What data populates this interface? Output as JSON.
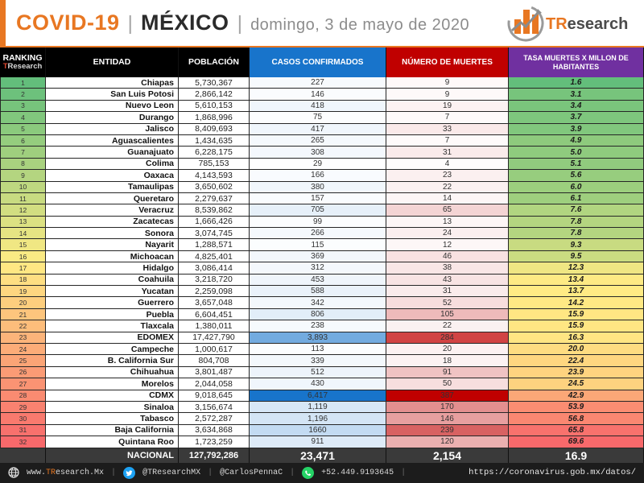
{
  "header": {
    "brand": "COVID-19",
    "separator": "|",
    "country": "MÉXICO",
    "date": "domingo, 3 de mayo de 2020",
    "logo_t": "TR",
    "logo_rest": "esearch"
  },
  "columns": {
    "ranking_line1": "RANKING",
    "ranking_t": "T",
    "ranking_rest": "Research",
    "entidad": "ENTIDAD",
    "poblacion": "POBLACIÓN",
    "casos": "CASOS CONFIRMADOS",
    "muertes": "NÚMERO DE MUERTES",
    "tasa": "TASA MUERTES X MILLON DE HABITANTES"
  },
  "colors": {
    "accent_orange": "#E87722",
    "scale_green": "#63BE7B",
    "scale_yellow": "#FFEB84",
    "scale_red": "#F8696B",
    "casos_header_blue": "#1874CB",
    "casos_max_color": "#1874CB",
    "muertes_header_red": "#C00000",
    "muertes_max_color": "#C00000",
    "tasa_header_purple": "#7030A0"
  },
  "chart_data": {
    "type": "table",
    "title": "COVID-19 | MÉXICO | domingo, 3 de mayo de 2020",
    "columns": [
      "RANKING TResearch",
      "ENTIDAD",
      "POBLACIÓN",
      "CASOS CONFIRMADOS",
      "NÚMERO DE MUERTES",
      "TASA MUERTES X MILLON DE HABITANTES"
    ],
    "scales": {
      "ranking": {
        "min": 1,
        "max": 32,
        "low_color": "#63BE7B",
        "mid_color": "#FFEB84",
        "high_color": "#F8696B"
      },
      "casos": {
        "min": 0,
        "max": 6417,
        "low_color": "#FFFFFF",
        "high_color": "#1874CB"
      },
      "muertes": {
        "min": 0,
        "max": 387,
        "low_color": "#FFFFFF",
        "high_color": "#C00000"
      },
      "tasa": {
        "min": 1.6,
        "mid": 13.55,
        "max": 69.6,
        "low_color": "#63BE7B",
        "mid_color": "#FFEB84",
        "high_color": "#F8696B"
      }
    },
    "rows": [
      {
        "rank": "1",
        "entidad": "Chiapas",
        "poblacion": "5,730,367",
        "casos": "227",
        "muertes": "9",
        "tasa": "1.6"
      },
      {
        "rank": "2",
        "entidad": "San Luis Potosi",
        "poblacion": "2,866,142",
        "casos": "146",
        "muertes": "9",
        "tasa": "3.1"
      },
      {
        "rank": "3",
        "entidad": "Nuevo Leon",
        "poblacion": "5,610,153",
        "casos": "418",
        "muertes": "19",
        "tasa": "3.4"
      },
      {
        "rank": "4",
        "entidad": "Durango",
        "poblacion": "1,868,996",
        "casos": "75",
        "muertes": "7",
        "tasa": "3.7"
      },
      {
        "rank": "5",
        "entidad": "Jalisco",
        "poblacion": "8,409,693",
        "casos": "417",
        "muertes": "33",
        "tasa": "3.9"
      },
      {
        "rank": "6",
        "entidad": "Aguascalientes",
        "poblacion": "1,434,635",
        "casos": "265",
        "muertes": "7",
        "tasa": "4.9"
      },
      {
        "rank": "7",
        "entidad": "Guanajuato",
        "poblacion": "6,228,175",
        "casos": "308",
        "muertes": "31",
        "tasa": "5.0"
      },
      {
        "rank": "8",
        "entidad": "Colima",
        "poblacion": "785,153",
        "casos": "29",
        "muertes": "4",
        "tasa": "5.1"
      },
      {
        "rank": "9",
        "entidad": "Oaxaca",
        "poblacion": "4,143,593",
        "casos": "166",
        "muertes": "23",
        "tasa": "5.6"
      },
      {
        "rank": "10",
        "entidad": "Tamaulipas",
        "poblacion": "3,650,602",
        "casos": "380",
        "muertes": "22",
        "tasa": "6.0"
      },
      {
        "rank": "11",
        "entidad": "Queretaro",
        "poblacion": "2,279,637",
        "casos": "157",
        "muertes": "14",
        "tasa": "6.1"
      },
      {
        "rank": "12",
        "entidad": "Veracruz",
        "poblacion": "8,539,862",
        "casos": "705",
        "muertes": "65",
        "tasa": "7.6"
      },
      {
        "rank": "13",
        "entidad": "Zacatecas",
        "poblacion": "1,666,426",
        "casos": "99",
        "muertes": "13",
        "tasa": "7.8"
      },
      {
        "rank": "14",
        "entidad": "Sonora",
        "poblacion": "3,074,745",
        "casos": "266",
        "muertes": "24",
        "tasa": "7.8"
      },
      {
        "rank": "15",
        "entidad": "Nayarit",
        "poblacion": "1,288,571",
        "casos": "115",
        "muertes": "12",
        "tasa": "9.3"
      },
      {
        "rank": "16",
        "entidad": "Michoacan",
        "poblacion": "4,825,401",
        "casos": "369",
        "muertes": "46",
        "tasa": "9.5"
      },
      {
        "rank": "17",
        "entidad": "Hidalgo",
        "poblacion": "3,086,414",
        "casos": "312",
        "muertes": "38",
        "tasa": "12.3"
      },
      {
        "rank": "18",
        "entidad": "Coahuila",
        "poblacion": "3,218,720",
        "casos": "453",
        "muertes": "43",
        "tasa": "13.4"
      },
      {
        "rank": "19",
        "entidad": "Yucatan",
        "poblacion": "2,259,098",
        "casos": "588",
        "muertes": "31",
        "tasa": "13.7"
      },
      {
        "rank": "20",
        "entidad": "Guerrero",
        "poblacion": "3,657,048",
        "casos": "342",
        "muertes": "52",
        "tasa": "14.2"
      },
      {
        "rank": "21",
        "entidad": "Puebla",
        "poblacion": "6,604,451",
        "casos": "806",
        "muertes": "105",
        "tasa": "15.9"
      },
      {
        "rank": "22",
        "entidad": "Tlaxcala",
        "poblacion": "1,380,011",
        "casos": "238",
        "muertes": "22",
        "tasa": "15.9"
      },
      {
        "rank": "23",
        "entidad": "EDOMEX",
        "poblacion": "17,427,790",
        "casos": "3,893",
        "muertes": "284",
        "tasa": "16.3"
      },
      {
        "rank": "24",
        "entidad": "Campeche",
        "poblacion": "1,000,617",
        "casos": "113",
        "muertes": "20",
        "tasa": "20.0"
      },
      {
        "rank": "25",
        "entidad": "B. California Sur",
        "poblacion": "804,708",
        "casos": "339",
        "muertes": "18",
        "tasa": "22.4"
      },
      {
        "rank": "26",
        "entidad": "Chihuahua",
        "poblacion": "3,801,487",
        "casos": "512",
        "muertes": "91",
        "tasa": "23.9"
      },
      {
        "rank": "27",
        "entidad": "Morelos",
        "poblacion": "2,044,058",
        "casos": "430",
        "muertes": "50",
        "tasa": "24.5"
      },
      {
        "rank": "28",
        "entidad": "CDMX",
        "poblacion": "9,018,645",
        "casos": "6,417",
        "muertes": "387",
        "tasa": "42.9"
      },
      {
        "rank": "29",
        "entidad": "Sinaloa",
        "poblacion": "3,156,674",
        "casos": "1,119",
        "muertes": "170",
        "tasa": "53.9"
      },
      {
        "rank": "30",
        "entidad": "Tabasco",
        "poblacion": "2,572,287",
        "casos": "1,196",
        "muertes": "146",
        "tasa": "56.8"
      },
      {
        "rank": "31",
        "entidad": "Baja California",
        "poblacion": "3,634,868",
        "casos": "1660",
        "muertes": "239",
        "tasa": "65.8"
      },
      {
        "rank": "32",
        "entidad": "Quintana Roo",
        "poblacion": "1,723,259",
        "casos": "911",
        "muertes": "120",
        "tasa": "69.6"
      }
    ],
    "national": {
      "label": "NACIONAL",
      "poblacion": "127,792,286",
      "casos": "23,471",
      "muertes": "2,154",
      "tasa": "16.9"
    }
  },
  "footer": {
    "website_www": "www.",
    "website_tr": "TR",
    "website_rest": "esearch.Mx",
    "separator": "|",
    "twitter_handle1": "@TResearchMX",
    "twitter_handle2": "@CarlosPennaC",
    "phone": "+52.449.9193645",
    "url": "https://coronavirus.gob.mx/datos/"
  }
}
